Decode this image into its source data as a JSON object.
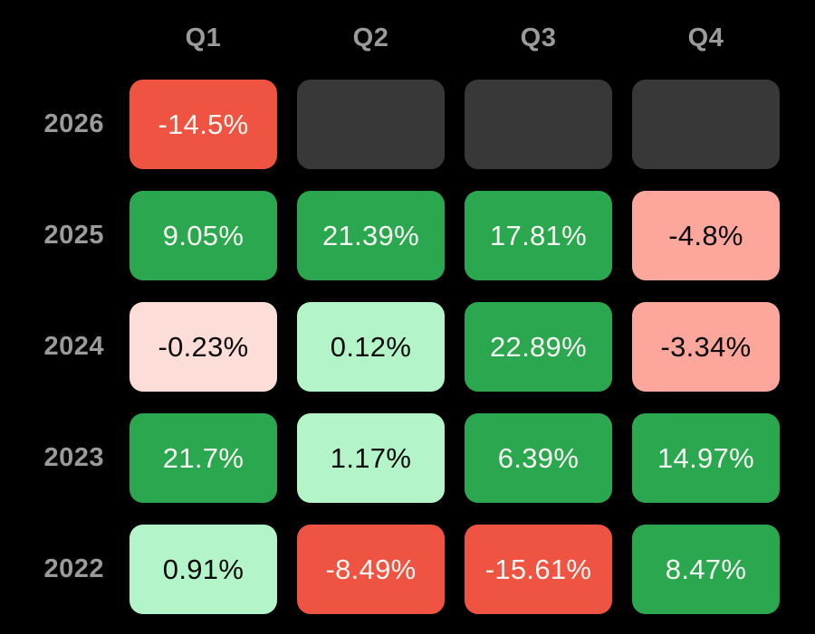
{
  "chart_data": {
    "type": "heatmap",
    "columns": [
      "Q1",
      "Q2",
      "Q3",
      "Q4"
    ],
    "rows": [
      "2026",
      "2025",
      "2024",
      "2023",
      "2022"
    ],
    "values": [
      [
        -14.5,
        null,
        null,
        null
      ],
      [
        9.05,
        21.39,
        17.81,
        -4.8
      ],
      [
        -0.23,
        0.12,
        22.89,
        -3.34
      ],
      [
        21.7,
        1.17,
        6.39,
        14.97
      ],
      [
        0.91,
        -8.49,
        -15.61,
        8.47
      ]
    ],
    "value_unit": "%",
    "legend_position": "none",
    "grid": false
  },
  "cells": [
    [
      {
        "label": "-14.5%",
        "bg": "red",
        "fg": "text_on_dark"
      },
      {
        "label": "",
        "bg": "empty",
        "fg": "text_on_dark"
      },
      {
        "label": "",
        "bg": "empty",
        "fg": "text_on_dark"
      },
      {
        "label": "",
        "bg": "empty",
        "fg": "text_on_dark"
      }
    ],
    [
      {
        "label": "9.05%",
        "bg": "green",
        "fg": "text_on_dark"
      },
      {
        "label": "21.39%",
        "bg": "green",
        "fg": "text_on_dark"
      },
      {
        "label": "17.81%",
        "bg": "green",
        "fg": "text_on_dark"
      },
      {
        "label": "-4.8%",
        "bg": "salmon",
        "fg": "text_on_light"
      }
    ],
    [
      {
        "label": "-0.23%",
        "bg": "light_pink",
        "fg": "text_on_light"
      },
      {
        "label": "0.12%",
        "bg": "mint",
        "fg": "text_on_light"
      },
      {
        "label": "22.89%",
        "bg": "green",
        "fg": "text_on_dark"
      },
      {
        "label": "-3.34%",
        "bg": "salmon",
        "fg": "text_on_light"
      }
    ],
    [
      {
        "label": "21.7%",
        "bg": "green",
        "fg": "text_on_dark"
      },
      {
        "label": "1.17%",
        "bg": "mint",
        "fg": "text_on_light"
      },
      {
        "label": "6.39%",
        "bg": "green",
        "fg": "text_on_dark"
      },
      {
        "label": "14.97%",
        "bg": "green",
        "fg": "text_on_dark"
      }
    ],
    [
      {
        "label": "0.91%",
        "bg": "mint",
        "fg": "text_on_light"
      },
      {
        "label": "-8.49%",
        "bg": "red",
        "fg": "text_on_dark"
      },
      {
        "label": "-15.61%",
        "bg": "red",
        "fg": "text_on_dark"
      },
      {
        "label": "8.47%",
        "bg": "green",
        "fg": "text_on_dark"
      }
    ]
  ],
  "colors": {
    "background": "#000000",
    "red": "#EE5441",
    "green": "#2BA84F",
    "salmon": "#FDA69B",
    "light_pink": "#FCDDD7",
    "mint": "#B3F5C8",
    "empty": "#383838",
    "label_gray": "#9B9B9B",
    "text_on_dark": "#F7F6F2",
    "text_on_light": "#0B0B0B"
  }
}
